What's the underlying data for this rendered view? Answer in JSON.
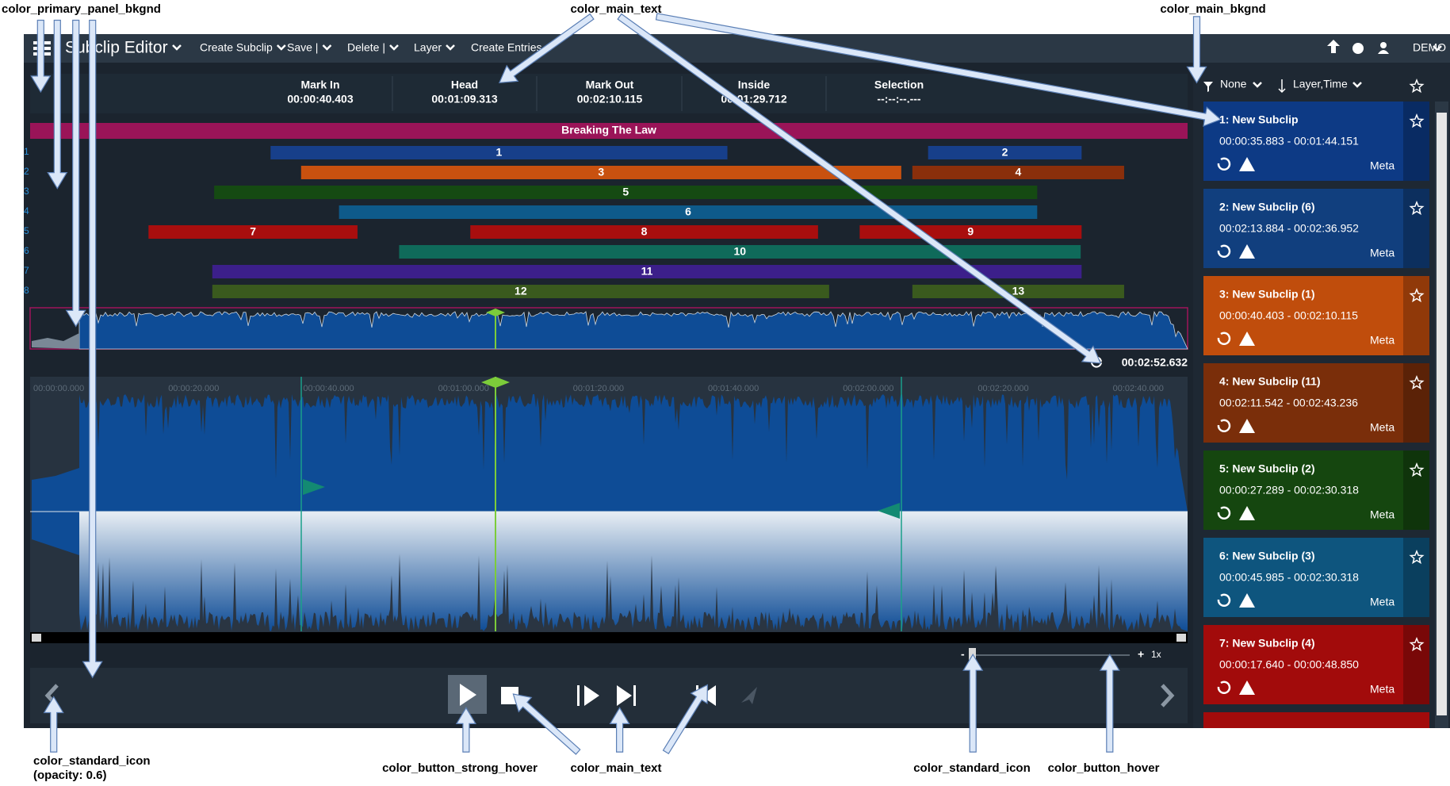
{
  "annotations": [
    "color_primary_panel_bkgnd",
    "color_main_text",
    "color_main_bkgnd",
    "color_standard_icon",
    "(opacity: 0.6)",
    "color_button_strong_hover",
    "color_main_text",
    "color_standard_icon",
    "color_button_hover"
  ],
  "menu": {
    "title": "Subclip Editor",
    "items": [
      "Create Subclip",
      "Save |",
      "Delete |",
      "Layer",
      "Create Entries"
    ],
    "user": "DEMO"
  },
  "timecodes": [
    {
      "label": "Mark In",
      "value": "00:00:40.403"
    },
    {
      "label": "Head",
      "value": "00:01:09.313"
    },
    {
      "label": "Mark Out",
      "value": "00:02:10.115"
    },
    {
      "label": "Inside",
      "value": "00:01:29.712"
    },
    {
      "label": "Selection",
      "value": "--:--:--.---"
    }
  ],
  "timeline": {
    "title": "Breaking The Law",
    "rows": [
      "1",
      "2",
      "3",
      "4",
      "5",
      "6",
      "7",
      "8"
    ],
    "clips": [
      {
        "label": "1",
        "color": "#173f8a"
      },
      {
        "label": "2",
        "color": "#173f8a"
      },
      {
        "label": "3",
        "color": "#c8510f"
      },
      {
        "label": "4",
        "color": "#8a2f0b"
      },
      {
        "label": "5",
        "color": "#154a12"
      },
      {
        "label": "6",
        "color": "#0e5a8a"
      },
      {
        "label": "7",
        "color": "#a80e0e"
      },
      {
        "label": "8",
        "color": "#a80e0e"
      },
      {
        "label": "9",
        "color": "#a80e0e"
      },
      {
        "label": "10",
        "color": "#0f6a5a"
      },
      {
        "label": "11",
        "color": "#3c1f8a"
      },
      {
        "label": "12",
        "color": "#3a5a1e"
      },
      {
        "label": "13",
        "color": "#3a5a1e"
      }
    ],
    "duration": "00:02:52.632",
    "ruler": [
      "00:00:00.000",
      "00:00:20.000",
      "00:00:40.000",
      "00:01:00.000",
      "00:01:20.000",
      "00:01:40.000",
      "00:02:00.000",
      "00:02:20.000",
      "00:02:40.000"
    ]
  },
  "zoom": {
    "minus": "-",
    "plus": "+",
    "rate": "1x"
  },
  "filter": {
    "group": "None",
    "sort": "Layer,Time"
  },
  "subclips": [
    {
      "title": "1: New Subclip",
      "range": "00:00:35.883 - 00:01:44.151",
      "meta": "Meta",
      "color": "#0d3a85"
    },
    {
      "title": "2: New Subclip (6)",
      "range": "00:02:13.884 - 00:02:36.952",
      "meta": "Meta",
      "color": "#113f7e"
    },
    {
      "title": "3: New Subclip (1)",
      "range": "00:00:40.403 - 00:02:10.115",
      "meta": "Meta",
      "color": "#c04d0c"
    },
    {
      "title": "4: New Subclip (11)",
      "range": "00:02:11.542 - 00:02:43.236",
      "meta": "Meta",
      "color": "#7a2e0a"
    },
    {
      "title": "5: New Subclip (2)",
      "range": "00:00:27.289 - 00:02:30.318",
      "meta": "Meta",
      "color": "#15460f"
    },
    {
      "title": "6: New Subclip (3)",
      "range": "00:00:45.985 - 00:02:30.318",
      "meta": "Meta",
      "color": "#0e557e"
    },
    {
      "title": "7: New Subclip (4)",
      "range": "00:00:17.640 - 00:00:48.850",
      "meta": "Meta",
      "color": "#a20b0b"
    }
  ]
}
